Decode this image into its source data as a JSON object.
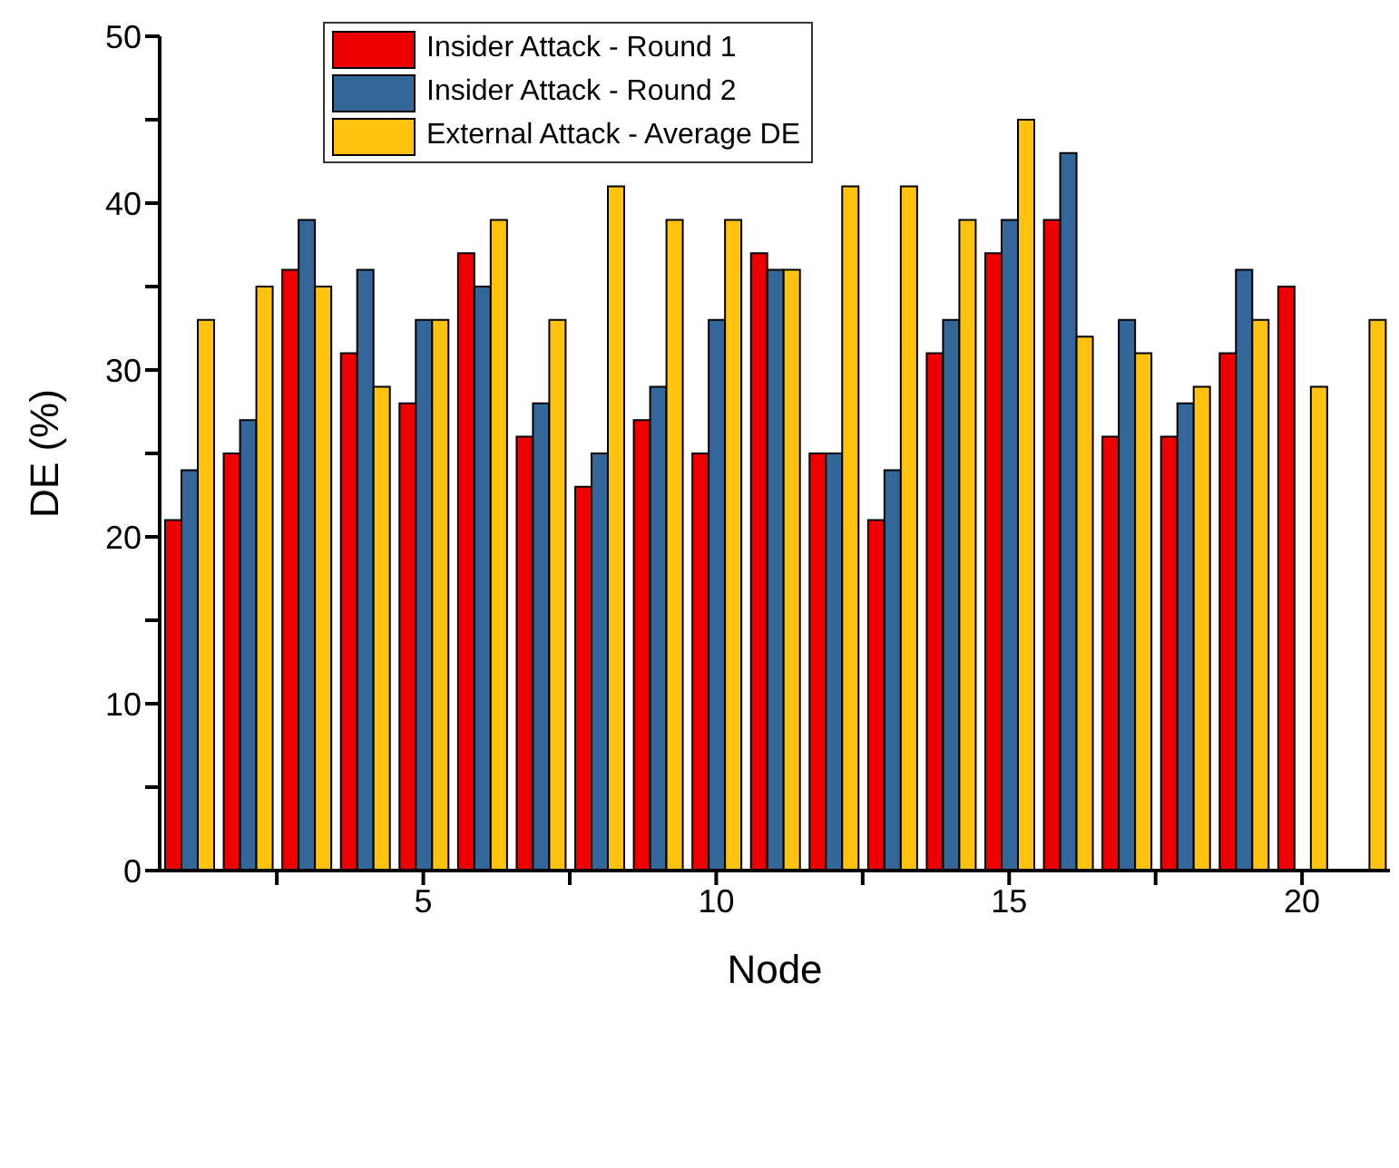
{
  "chart_data": {
    "type": "bar",
    "xlabel": "Node",
    "ylabel": "DE (%)",
    "x": [
      1,
      2,
      3,
      4,
      5,
      6,
      7,
      8,
      9,
      10,
      11,
      12,
      13,
      14,
      15,
      16,
      17,
      18,
      19,
      20,
      21
    ],
    "series": [
      {
        "name": "Insider Attack - Round 1",
        "color": "#ee0000",
        "values": [
          21,
          25,
          36,
          31,
          28,
          37,
          26,
          23,
          27,
          25,
          37,
          25,
          21,
          31,
          37,
          39,
          26,
          26,
          31,
          35,
          null
        ]
      },
      {
        "name": "Insider Attack - Round 2",
        "color": "#336699",
        "values": [
          24,
          27,
          39,
          36,
          33,
          35,
          28,
          25,
          29,
          33,
          36,
          25,
          24,
          33,
          39,
          43,
          33,
          28,
          36,
          null,
          null
        ]
      },
      {
        "name": "External Attack - Average DE",
        "color": "#ffc20e",
        "values": [
          33,
          35,
          35,
          29,
          33,
          39,
          33,
          41,
          39,
          39,
          36,
          41,
          41,
          39,
          45,
          32,
          31,
          29,
          33,
          29,
          33
        ]
      }
    ],
    "xlim": [
      0.5,
      21.5
    ],
    "xticks": [
      {
        "value": 2.5,
        "label": null
      },
      5,
      {
        "value": 7.5,
        "label": null
      },
      10,
      {
        "value": 12.5,
        "label": null
      },
      15,
      {
        "value": 17.5,
        "label": null
      },
      20
    ],
    "ylim": [
      0,
      50
    ],
    "yticks": [
      0,
      {
        "value": 5,
        "label": null
      },
      10,
      {
        "value": 15,
        "label": null
      },
      20,
      {
        "value": 25,
        "label": null
      },
      30,
      {
        "value": 35,
        "label": null
      },
      40,
      {
        "value": 45,
        "label": null
      },
      50
    ],
    "grid": false,
    "legend": "top"
  }
}
